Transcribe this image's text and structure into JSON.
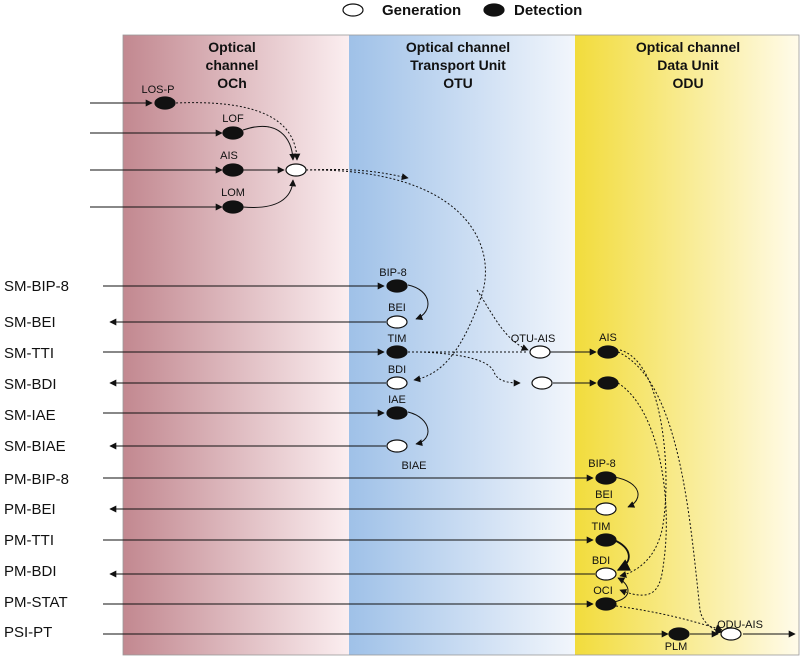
{
  "legend": {
    "generation_label": "Generation",
    "detection_label": "Detection"
  },
  "columns": {
    "och": {
      "line1": "Optical",
      "line2": "channel",
      "line3": "OCh"
    },
    "otu": {
      "line1": "Optical channel",
      "line2": "Transport Unit",
      "line3": "OTU"
    },
    "odu": {
      "line1": "Optical channel",
      "line2": "Data Unit",
      "line3": "ODU"
    }
  },
  "signals": [
    "SM-BIP-8",
    "SM-BEI",
    "SM-TTI",
    "SM-BDI",
    "SM-IAE",
    "SM-BIAE",
    "PM-BIP-8",
    "PM-BEI",
    "PM-TTI",
    "PM-BDI",
    "PM-STAT",
    "PSI-PT"
  ],
  "nodes": {
    "los_p": "LOS-P",
    "lof": "LOF",
    "ais_och": "AIS",
    "lom": "LOM",
    "sm_bip8": "BIP-8",
    "sm_bei": "BEI",
    "sm_tim": "TIM",
    "sm_bdi": "BDI",
    "sm_iae": "IAE",
    "sm_biae": "BIAE",
    "otu_ais": "OTU-AIS",
    "odu_ais_det": "AIS",
    "pm_bip8": "BIP-8",
    "pm_bei": "BEI",
    "pm_tim": "TIM",
    "pm_bdi": "BDI",
    "oci": "OCI",
    "plm": "PLM",
    "odu_ais": "ODU-AIS"
  },
  "colors": {
    "och_band": "#c78c94",
    "otu_band": "#a9c8ea",
    "odu_band": "#f3df4a",
    "line": "#111111"
  }
}
